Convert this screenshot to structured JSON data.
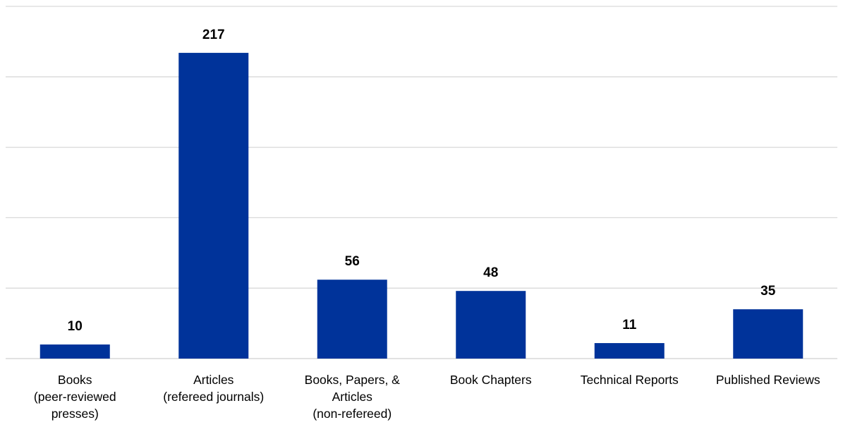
{
  "chart_data": {
    "type": "bar",
    "title": "",
    "xlabel": "",
    "ylabel": "",
    "ylim": [
      0,
      250
    ],
    "y_gridlines": [
      0,
      50,
      100,
      150,
      200,
      250
    ],
    "y_tick_labels_shown": false,
    "grid": true,
    "legend": "none",
    "bar_color": "#00339a",
    "categories": [
      [
        "Books",
        "(peer-reviewed",
        "presses)"
      ],
      [
        "Articles",
        "(refereed journals)"
      ],
      [
        "Books, Papers, &",
        "Articles",
        "(non-refereed)"
      ],
      [
        "Book Chapters"
      ],
      [
        "Technical Reports"
      ],
      [
        "Published Reviews"
      ]
    ],
    "values": [
      10,
      217,
      56,
      48,
      11,
      35
    ],
    "data_labels": [
      "10",
      "217",
      "56",
      "48",
      "11",
      "35"
    ]
  }
}
